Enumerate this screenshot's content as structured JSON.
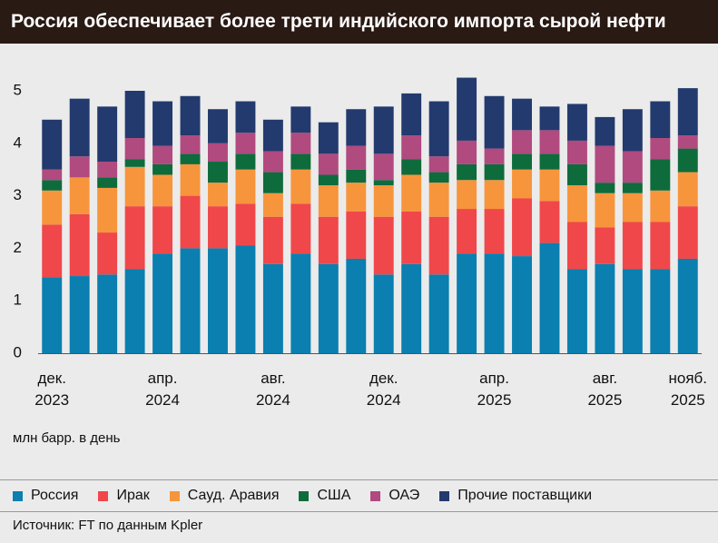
{
  "chart_data": {
    "type": "stacked_bar",
    "title": "Россия обеспечивает более трети индийского импорта сырой нефти",
    "ylabel": "млн барр. в день",
    "source": "Источник: FT по данным Kpler",
    "categories": [
      "дек.\n2023",
      null,
      null,
      null,
      "апр.\n2024",
      null,
      null,
      null,
      "авг.\n2024",
      null,
      null,
      null,
      "дек.\n2024",
      null,
      null,
      null,
      "апр.\n2025",
      null,
      null,
      null,
      "авг.\n2025",
      null,
      null,
      "нояб.\n2025"
    ],
    "series": [
      {
        "name": "Россия",
        "color": "#0a7fb0",
        "values": [
          1.45,
          1.47,
          1.5,
          1.6,
          1.9,
          2.0,
          2.0,
          2.05,
          1.7,
          1.9,
          1.7,
          1.8,
          1.5,
          1.7,
          1.5,
          1.9,
          1.9,
          1.85,
          2.1,
          1.6,
          1.7,
          1.6,
          1.6,
          1.8
        ]
      },
      {
        "name": "Ирак",
        "color": "#f0474a",
        "values": [
          1.0,
          1.18,
          0.8,
          1.2,
          0.9,
          1.0,
          0.8,
          0.8,
          0.9,
          0.95,
          0.9,
          0.9,
          1.1,
          1.0,
          1.1,
          0.85,
          0.85,
          1.1,
          0.8,
          0.9,
          0.7,
          0.9,
          0.9,
          1.0
        ]
      },
      {
        "name": "Сауд. Аравия",
        "color": "#f7953c",
        "values": [
          0.65,
          0.7,
          0.85,
          0.75,
          0.6,
          0.6,
          0.45,
          0.65,
          0.45,
          0.65,
          0.6,
          0.55,
          0.6,
          0.7,
          0.65,
          0.55,
          0.55,
          0.55,
          0.6,
          0.7,
          0.65,
          0.55,
          0.6,
          0.65
        ]
      },
      {
        "name": "США",
        "color": "#0e6b3c",
        "values": [
          0.2,
          0,
          0.2,
          0.15,
          0.2,
          0.2,
          0.4,
          0.3,
          0.4,
          0.3,
          0.2,
          0.25,
          0.1,
          0.3,
          0.2,
          0.3,
          0.3,
          0.3,
          0.3,
          0.4,
          0.2,
          0.2,
          0.6,
          0.45
        ]
      },
      {
        "name": "ОАЭ",
        "color": "#b04a7f",
        "values": [
          0.2,
          0.4,
          0.3,
          0.4,
          0.35,
          0.35,
          0.35,
          0.4,
          0.4,
          0.4,
          0.4,
          0.45,
          0.5,
          0.45,
          0.3,
          0.45,
          0.3,
          0.45,
          0.45,
          0.45,
          0.7,
          0.6,
          0.4,
          0.25
        ]
      },
      {
        "name": "Прочие поставщики",
        "color": "#233a6e",
        "values": [
          0.95,
          1.1,
          1.05,
          0.9,
          0.85,
          0.75,
          0.65,
          0.6,
          0.6,
          0.5,
          0.6,
          0.7,
          0.9,
          0.8,
          1.05,
          1.2,
          1.0,
          0.6,
          0.45,
          0.7,
          0.55,
          0.8,
          0.7,
          0.9
        ]
      }
    ],
    "ylim": [
      0,
      5
    ],
    "yticks": [
      0,
      1,
      2,
      3,
      4,
      5
    ],
    "grid": false
  }
}
